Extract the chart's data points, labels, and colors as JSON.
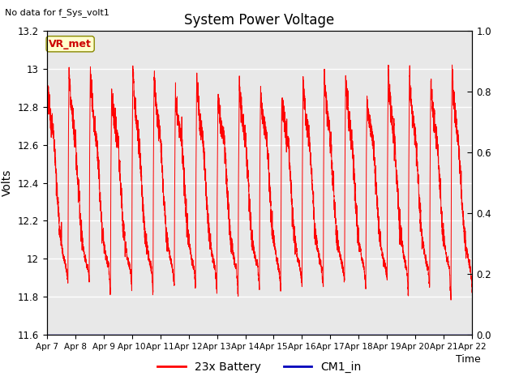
{
  "title": "System Power Voltage",
  "no_data_text": "No data for f_Sys_volt1",
  "ylabel_left": "Volts",
  "xlabel": "Time",
  "ylim_left": [
    11.6,
    13.2
  ],
  "ylim_right": [
    0.0,
    1.0
  ],
  "xlim": [
    0,
    15
  ],
  "xtick_labels": [
    "Apr 7",
    "Apr 8",
    "Apr 9",
    "Apr 10",
    "Apr 11",
    "Apr 12",
    "Apr 13",
    "Apr 14",
    "Apr 15",
    "Apr 16",
    "Apr 17",
    "Apr 18",
    "Apr 19",
    "Apr 20",
    "Apr 21",
    "Apr 22"
  ],
  "ytick_left": [
    11.6,
    11.8,
    12.0,
    12.2,
    12.4,
    12.6,
    12.8,
    13.0,
    13.2
  ],
  "ytick_right": [
    0.0,
    0.2,
    0.4,
    0.6,
    0.8,
    1.0
  ],
  "line_color_battery": "#ff0000",
  "line_color_cm1": "#0000bb",
  "legend_labels": [
    "23x Battery",
    "CM1_in"
  ],
  "bg_color": "#e8e8e8",
  "vr_met_text": "VR_met",
  "vr_met_color": "#cc0000",
  "vr_met_bg": "#ffffcc",
  "vr_met_edge": "#888800"
}
